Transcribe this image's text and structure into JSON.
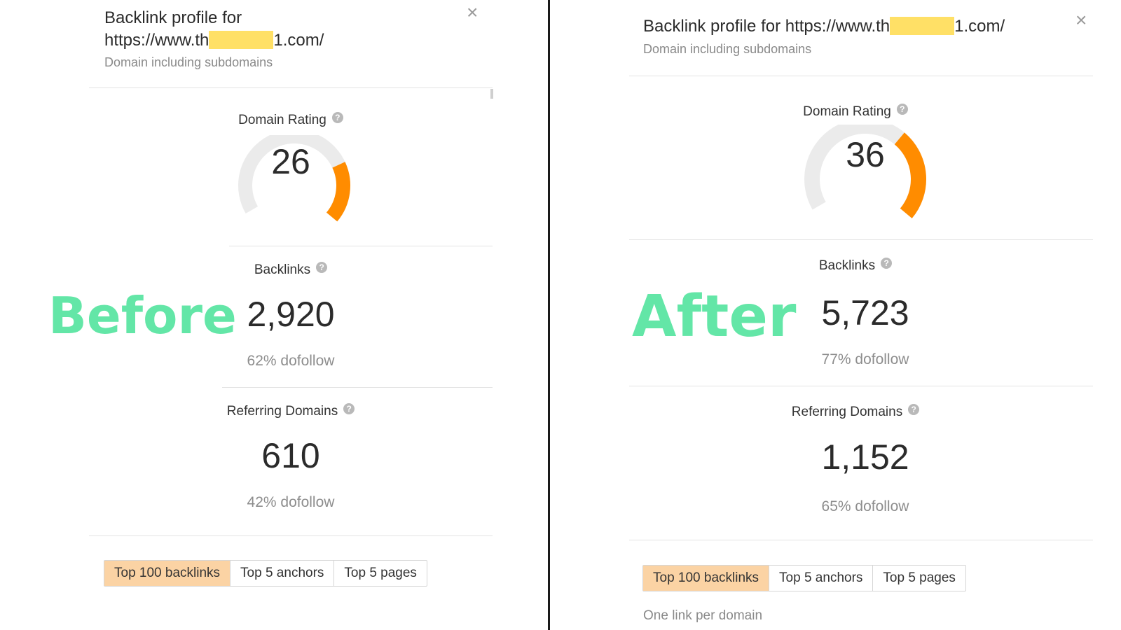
{
  "before": {
    "caption": "Before",
    "title_line1": "Backlink profile for",
    "url_prefix": "https://www.th",
    "url_suffix": "1.com/",
    "subtitle": "Domain including subdomains",
    "close": "×",
    "domain_rating": {
      "label": "Domain Rating",
      "value": "26",
      "fraction": 0.26
    },
    "backlinks": {
      "label": "Backlinks",
      "value": "2,920",
      "dofollow": "62% dofollow"
    },
    "referring_domains": {
      "label": "Referring Domains",
      "value": "610",
      "dofollow": "42% dofollow"
    },
    "tabs": [
      "Top 100 backlinks",
      "Top 5 anchors",
      "Top 5 pages"
    ]
  },
  "after": {
    "caption": "After",
    "title_prefix": "Backlink profile for https://www.th",
    "url_suffix": "1.com/",
    "subtitle": "Domain including subdomains",
    "close": "×",
    "domain_rating": {
      "label": "Domain Rating",
      "value": "36",
      "fraction": 0.36
    },
    "backlinks": {
      "label": "Backlinks",
      "value": "5,723",
      "dofollow": "77% dofollow"
    },
    "referring_domains": {
      "label": "Referring Domains",
      "value": "1,152",
      "dofollow": "65% dofollow"
    },
    "tabs": [
      "Top 100 backlinks",
      "Top 5 anchors",
      "Top 5 pages"
    ],
    "note": "One link per domain"
  },
  "help_glyph": "?",
  "colors": {
    "gauge_fill": "#ff8c00",
    "gauge_track": "#ebebeb",
    "caption": "#63e6a7",
    "redaction": "#ffe066",
    "active_tab": "#fbd3a4"
  }
}
